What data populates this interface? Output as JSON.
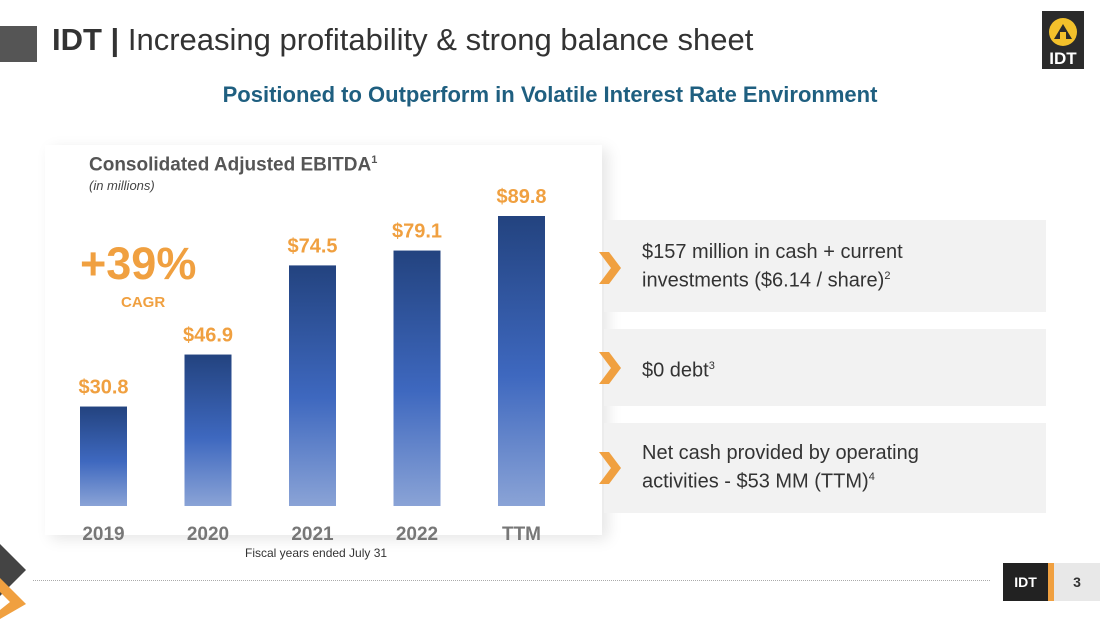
{
  "header": {
    "title_bold": "IDT |",
    "title_rest": " Increasing profitability & strong balance sheet",
    "subtitle": "Positioned to Outperform in Volatile Interest Rate Environment",
    "logo_text": "IDT"
  },
  "chart_data": {
    "type": "bar",
    "title": "Consolidated Adjusted EBITDA",
    "title_footnote": "1",
    "units": "(in millions)",
    "categories": [
      "2019",
      "2020",
      "2021",
      "2022",
      "TTM"
    ],
    "values": [
      30.8,
      46.9,
      74.5,
      79.1,
      89.8
    ],
    "labels": [
      "$30.8",
      "$46.9",
      "$74.5",
      "$79.1",
      "$89.8"
    ],
    "ylim": [
      0,
      110
    ],
    "cagr_value": "+39%",
    "cagr_label": "CAGR",
    "footnote": "Fiscal years ended July 31"
  },
  "highlights": [
    {
      "text": "$157 million in cash + current investments ($6.14 / share)",
      "sup": "2"
    },
    {
      "text": "$0 debt",
      "sup": "3"
    },
    {
      "text": "Net cash provided by operating activities - $53 MM (TTM)",
      "sup": "4"
    }
  ],
  "footer": {
    "brand": "IDT",
    "page": "3"
  },
  "colors": {
    "accent": "#f0a040",
    "bar_top": "#23437f",
    "bar_bottom": "#8aa3d6",
    "subtitle": "#1f5f80"
  }
}
